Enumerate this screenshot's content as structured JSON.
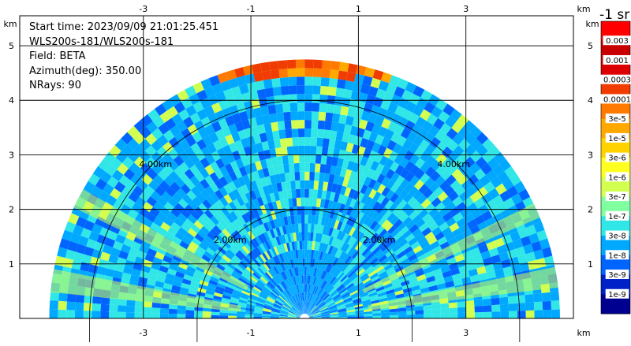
{
  "info": {
    "start_time": "Start time: 2023/09/09 21:01:25.451",
    "instrument": "WLS200s-181/WLS200s-181",
    "field": "Field: BETA",
    "azimuth": "Azimuth(deg): 350.00",
    "nrays": "NRays: 90"
  },
  "colorbar": {
    "title": "-1 sr",
    "labels": [
      "0.003",
      "0.001",
      "0.0003",
      "0.0001",
      "3e-5",
      "1e-5",
      "3e-6",
      "1e-6",
      "3e-7",
      "1e-7",
      "3e-8",
      "1e-8",
      "3e-9",
      "1e-9"
    ],
    "colors": [
      "#ff0000",
      "#c80000",
      "#dc0000",
      "#f03c00",
      "#ff7a00",
      "#ffa800",
      "#ffd200",
      "#ffff20",
      "#d2ff50",
      "#80ffa0",
      "#30e6e6",
      "#00a8ff",
      "#0064ff",
      "#0020c8",
      "#000090"
    ]
  },
  "chart_data": {
    "type": "heatmap",
    "title": "",
    "field": "BETA",
    "units_label": "-1 sr",
    "x_unit": "km",
    "y_unit": "km",
    "x_ticks": [
      -3,
      -1,
      1,
      3
    ],
    "y_ticks": [
      1,
      2,
      3,
      4,
      5
    ],
    "xlim": [
      -5.3,
      5.0
    ],
    "ylim": [
      0,
      5.55
    ],
    "range_rings_km": [
      2.0,
      4.0
    ],
    "ring_labels": [
      "2.00km",
      "4.00km"
    ],
    "max_range_km": 4.75,
    "grid": true,
    "aerosol_layer": {
      "height_km": [
        4.4,
        5.0
      ],
      "value": "3e-5 to 3e-4"
    },
    "background_value": "3e-8 to 1e-7"
  }
}
